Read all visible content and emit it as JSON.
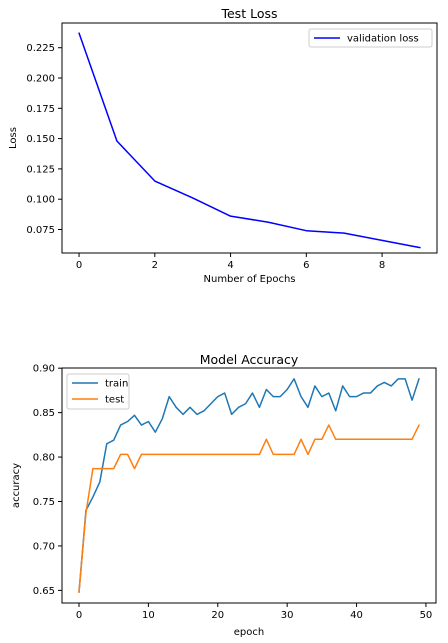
{
  "chart_data": [
    {
      "type": "line",
      "title": "Test Loss",
      "xlabel": "Number of Epochs",
      "ylabel": "Loss",
      "xlim": [
        -0.45,
        9.45
      ],
      "ylim": [
        0.0556,
        0.2454
      ],
      "xticks": [
        0,
        2,
        4,
        6,
        8
      ],
      "yticks": [
        0.075,
        0.1,
        0.125,
        0.15,
        0.175,
        0.2,
        0.225
      ],
      "ytick_labels": [
        "0.075",
        "0.100",
        "0.125",
        "0.150",
        "0.175",
        "0.200",
        "0.225"
      ],
      "legend_position": "upper right",
      "grid": false,
      "x": [
        0,
        1,
        2,
        3,
        4,
        5,
        6,
        7,
        8,
        9
      ],
      "series": [
        {
          "name": "validation loss",
          "color": "#0000ff",
          "values": [
            0.237,
            0.148,
            0.115,
            0.101,
            0.086,
            0.081,
            0.074,
            0.072,
            0.066,
            0.06
          ]
        }
      ]
    },
    {
      "type": "line",
      "title": "Model Accuracy",
      "xlabel": "epoch",
      "ylabel": "accuracy",
      "xlim": [
        -2.45,
        51.45
      ],
      "ylim": [
        0.6358,
        0.9002
      ],
      "xticks": [
        0,
        10,
        20,
        30,
        40,
        50
      ],
      "yticks": [
        0.65,
        0.7,
        0.75,
        0.8,
        0.85,
        0.9
      ],
      "ytick_labels": [
        "0.65",
        "0.70",
        "0.75",
        "0.80",
        "0.85",
        "0.90"
      ],
      "legend_position": "upper left",
      "grid": false,
      "x": [
        0,
        1,
        2,
        3,
        4,
        5,
        6,
        7,
        8,
        9,
        10,
        11,
        12,
        13,
        14,
        15,
        16,
        17,
        18,
        19,
        20,
        21,
        22,
        23,
        24,
        25,
        26,
        27,
        28,
        29,
        30,
        31,
        32,
        33,
        34,
        35,
        36,
        37,
        38,
        39,
        40,
        41,
        42,
        43,
        44,
        45,
        46,
        47,
        48,
        49
      ],
      "series": [
        {
          "name": "train",
          "color": "#1f77b4",
          "values": [
            0.648,
            0.74,
            0.755,
            0.772,
            0.815,
            0.819,
            0.836,
            0.84,
            0.847,
            0.836,
            0.84,
            0.828,
            0.843,
            0.868,
            0.856,
            0.848,
            0.856,
            0.848,
            0.852,
            0.86,
            0.868,
            0.872,
            0.848,
            0.856,
            0.86,
            0.872,
            0.856,
            0.876,
            0.868,
            0.868,
            0.876,
            0.888,
            0.868,
            0.856,
            0.88,
            0.868,
            0.872,
            0.852,
            0.88,
            0.868,
            0.868,
            0.872,
            0.872,
            0.88,
            0.884,
            0.88,
            0.888,
            0.888,
            0.864,
            0.888
          ]
        },
        {
          "name": "test",
          "color": "#ff7f0e",
          "values": [
            0.648,
            0.737,
            0.787,
            0.787,
            0.787,
            0.787,
            0.803,
            0.803,
            0.787,
            0.803,
            0.803,
            0.803,
            0.803,
            0.803,
            0.803,
            0.803,
            0.803,
            0.803,
            0.803,
            0.803,
            0.803,
            0.803,
            0.803,
            0.803,
            0.803,
            0.803,
            0.803,
            0.82,
            0.803,
            0.803,
            0.803,
            0.803,
            0.82,
            0.803,
            0.82,
            0.82,
            0.836,
            0.82,
            0.82,
            0.82,
            0.82,
            0.82,
            0.82,
            0.82,
            0.82,
            0.82,
            0.82,
            0.82,
            0.82,
            0.836
          ]
        }
      ]
    }
  ]
}
